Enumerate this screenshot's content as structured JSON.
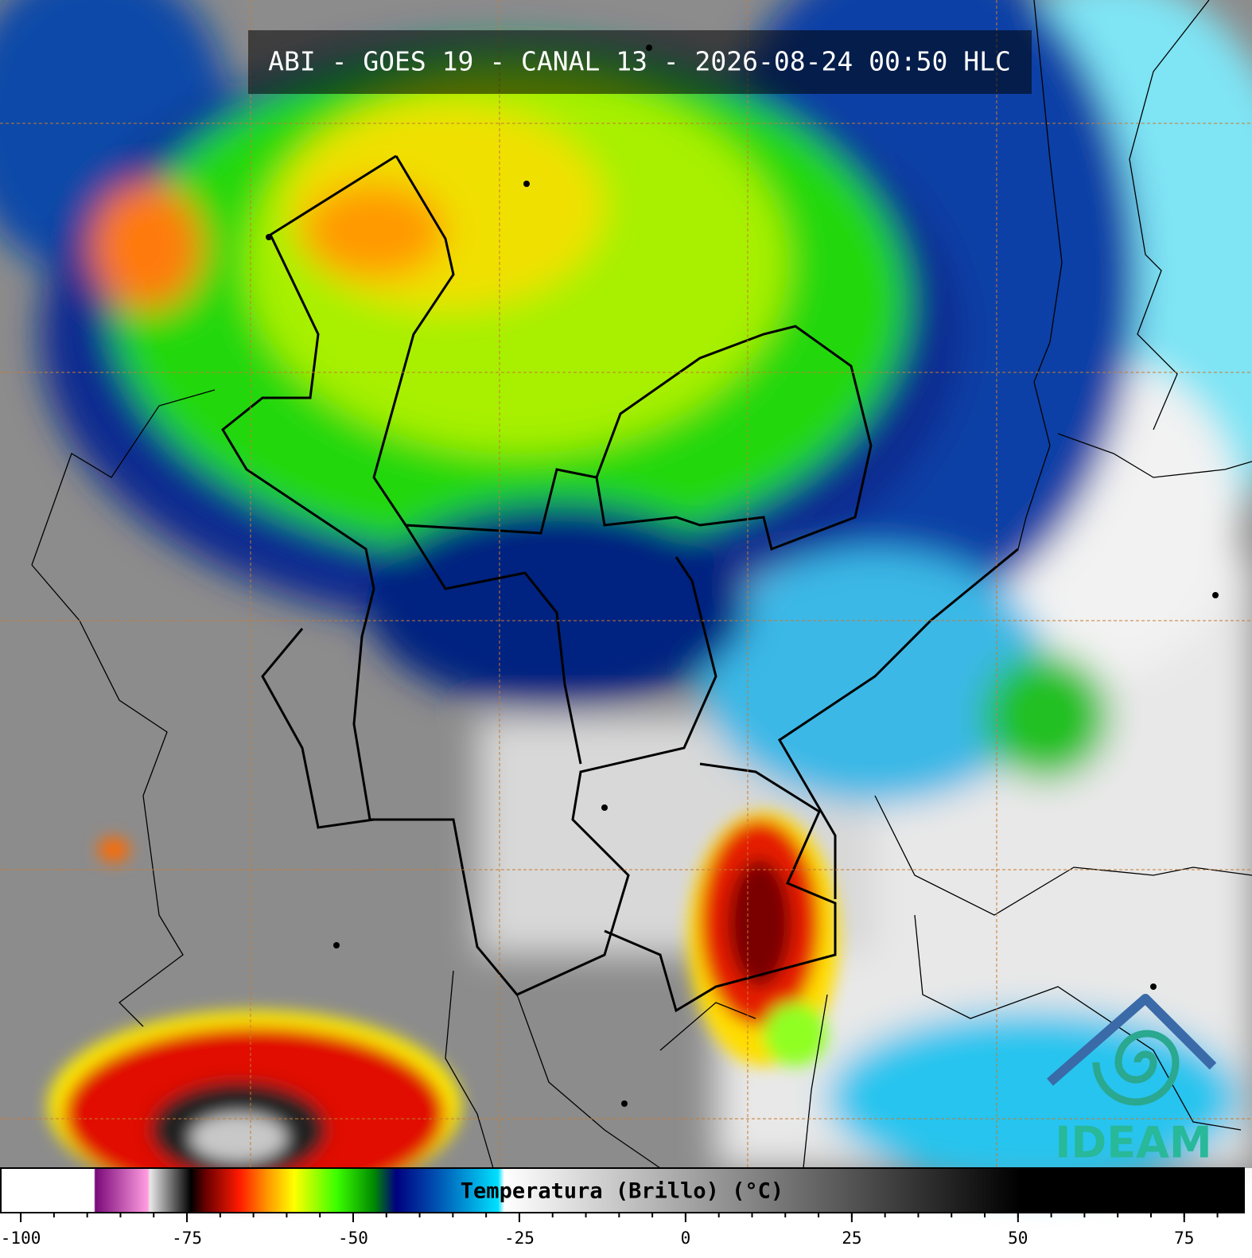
{
  "title": "ABI - GOES 19 - CANAL 13 - 2026-08-24 00:50 HLC",
  "colorbar": {
    "label": "Temperatura (Brillo) (°C)",
    "lim": [
      -103,
      84
    ],
    "ticks": [
      -100,
      -75,
      -50,
      -25,
      0,
      25,
      50,
      75
    ],
    "minor_ticks": [
      -100,
      -95,
      -90,
      -85,
      -80,
      -75,
      -70,
      -65,
      -60,
      -55,
      -50,
      -45,
      -40,
      -35,
      -30,
      -25,
      -20,
      -15,
      -10,
      -5,
      0,
      5,
      10,
      15,
      20,
      25,
      30,
      35,
      40,
      45,
      50,
      55,
      60,
      65,
      70,
      75,
      80
    ]
  },
  "logo": "IDEAM"
}
